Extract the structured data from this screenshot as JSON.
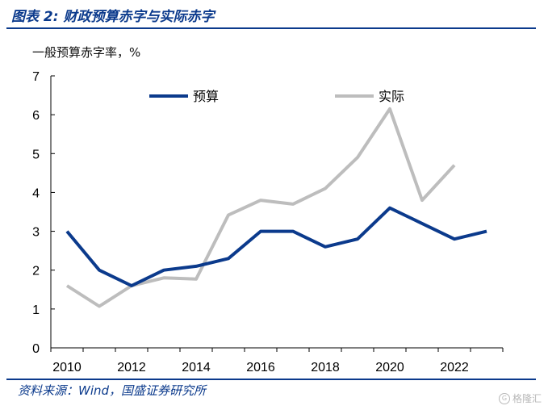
{
  "figure": {
    "title": "图表 2: 财政预算赤字与实际赤字",
    "unit_label": "一般预算赤字率，%",
    "source": "资料来源：Wind，国盛证券研究所",
    "watermark": "格隆汇"
  },
  "chart_data": {
    "type": "line",
    "title": "",
    "xlabel": "",
    "ylabel": "一般预算赤字率，%",
    "x": [
      2010,
      2011,
      2012,
      2013,
      2014,
      2015,
      2016,
      2017,
      2018,
      2019,
      2020,
      2021,
      2022,
      2023
    ],
    "xticks": [
      "2010",
      "2012",
      "2014",
      "2016",
      "2018",
      "2020",
      "2022"
    ],
    "yticks": [
      "0",
      "1",
      "2",
      "3",
      "4",
      "5",
      "6",
      "7"
    ],
    "ylim": [
      0,
      7
    ],
    "grid": false,
    "legend_position": "top",
    "series": [
      {
        "name": "预算",
        "color": "#0b3a8c",
        "values": [
          3.0,
          2.0,
          1.6,
          2.0,
          2.1,
          2.3,
          3.0,
          3.0,
          2.6,
          2.8,
          3.6,
          3.2,
          2.8,
          3.0
        ]
      },
      {
        "name": "实际",
        "color": "#bdbdbd",
        "values": [
          1.6,
          1.07,
          1.6,
          1.8,
          1.77,
          3.42,
          3.8,
          3.7,
          4.1,
          4.9,
          6.15,
          3.8,
          4.7,
          null
        ]
      }
    ]
  }
}
